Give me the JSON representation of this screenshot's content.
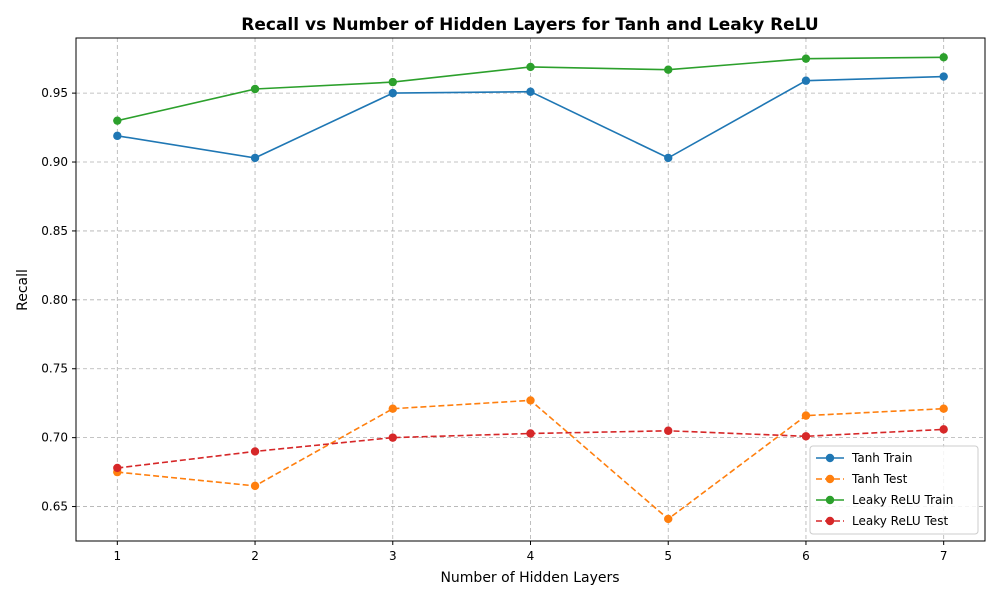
{
  "chart_data": {
    "type": "line",
    "title": "Recall vs Number of Hidden Layers for Tanh and Leaky ReLU",
    "xlabel": "Number of Hidden Layers",
    "ylabel": "Recall",
    "x": [
      1,
      2,
      3,
      4,
      5,
      6,
      7
    ],
    "xlim": [
      0.7,
      7.3
    ],
    "ylim": [
      0.625,
      0.99
    ],
    "xticks": [
      "1",
      "2",
      "3",
      "4",
      "5",
      "6",
      "7"
    ],
    "yticks": [
      "0.65",
      "0.70",
      "0.75",
      "0.80",
      "0.85",
      "0.90",
      "0.95"
    ],
    "grid": true,
    "legend_position": "lower-right",
    "series": [
      {
        "name": "Tanh Train",
        "color": "#1f77b4",
        "dashed": false,
        "values": [
          0.919,
          0.903,
          0.95,
          0.951,
          0.903,
          0.959,
          0.962
        ]
      },
      {
        "name": "Tanh Test",
        "color": "#ff7f0e",
        "dashed": true,
        "values": [
          0.675,
          0.665,
          0.721,
          0.727,
          0.641,
          0.716,
          0.721
        ]
      },
      {
        "name": "Leaky ReLU Train",
        "color": "#2ca02c",
        "dashed": false,
        "values": [
          0.93,
          0.953,
          0.958,
          0.969,
          0.967,
          0.975,
          0.976
        ]
      },
      {
        "name": "Leaky ReLU Test",
        "color": "#d62728",
        "dashed": true,
        "values": [
          0.678,
          0.69,
          0.7,
          0.703,
          0.705,
          0.701,
          0.706
        ]
      }
    ]
  }
}
